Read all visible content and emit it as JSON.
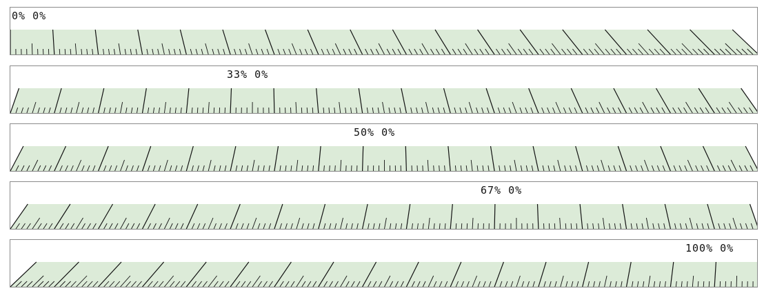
{
  "colors": {
    "band": "#dcebd8",
    "tick": "#111111",
    "border": "#8a8a8a"
  },
  "panels": [
    {
      "id": "p0",
      "label_a": "0%",
      "label_b": "0%",
      "skew": 0.0
    },
    {
      "id": "p1",
      "label_a": "33%",
      "label_b": "0%",
      "skew": 0.33
    },
    {
      "id": "p2",
      "label_a": "50%",
      "label_b": "0%",
      "skew": 0.5
    },
    {
      "id": "p3",
      "label_a": "67%",
      "label_b": "0%",
      "skew": 0.67
    },
    {
      "id": "p4",
      "label_a": "100%",
      "label_b": "0%",
      "skew": 1.0
    }
  ]
}
